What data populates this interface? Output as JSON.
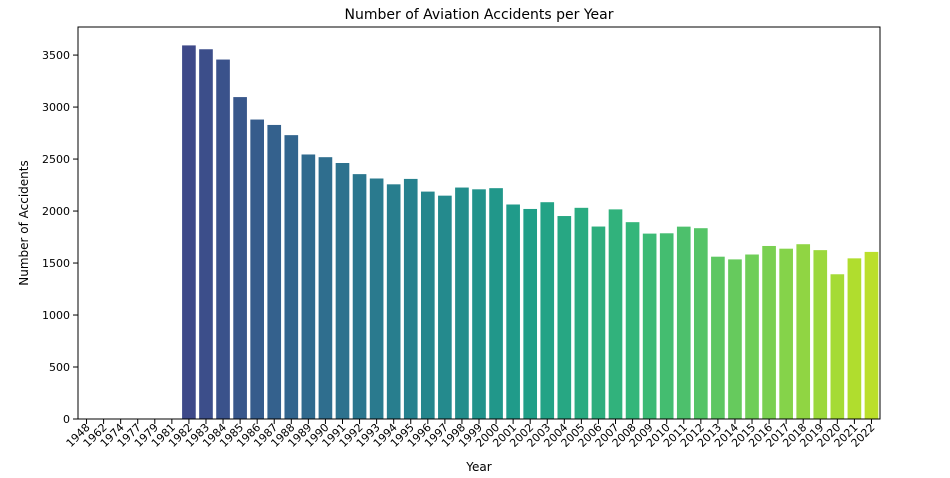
{
  "chart_data": {
    "type": "bar",
    "title": "Number of Aviation Accidents per Year",
    "xlabel": "Year",
    "ylabel": "Number of Accidents",
    "categories": [
      "1948",
      "1962",
      "1974",
      "1977",
      "1979",
      "1981",
      "1982",
      "1983",
      "1984",
      "1985",
      "1986",
      "1987",
      "1988",
      "1989",
      "1990",
      "1991",
      "1992",
      "1993",
      "1994",
      "1995",
      "1996",
      "1997",
      "1998",
      "1999",
      "2000",
      "2001",
      "2002",
      "2003",
      "2004",
      "2005",
      "2006",
      "2007",
      "2008",
      "2009",
      "2010",
      "2011",
      "2012",
      "2013",
      "2014",
      "2015",
      "2016",
      "2017",
      "2018",
      "2019",
      "2020",
      "2021",
      "2022"
    ],
    "values": [
      1,
      1,
      1,
      2,
      2,
      1,
      3593,
      3556,
      3457,
      3096,
      2880,
      2828,
      2730,
      2544,
      2518,
      2462,
      2355,
      2313,
      2257,
      2309,
      2187,
      2148,
      2226,
      2209,
      2220,
      2063,
      2020,
      2085,
      1952,
      2031,
      1851,
      2016,
      1893,
      1783,
      1786,
      1850,
      1835,
      1561,
      1535,
      1582,
      1664,
      1638,
      1681,
      1624,
      1392,
      1545,
      1607
    ],
    "ylim": [
      0,
      3770
    ],
    "yticks": [
      0,
      500,
      1000,
      1500,
      2000,
      2500,
      3000,
      3500
    ],
    "palette": "viridis",
    "grid": false,
    "legend": "none"
  }
}
